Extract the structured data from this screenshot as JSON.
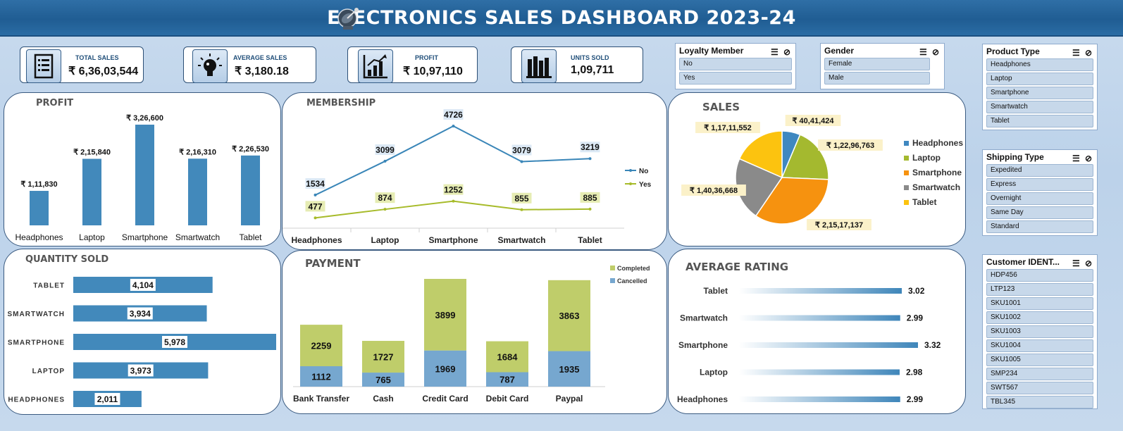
{
  "title": "ELECTRONICS SALES DASHBOARD  2023-24",
  "kpis": [
    {
      "label": "TOTAL SALES",
      "value": "₹ 6,36,03,544",
      "icon": "document-list-icon"
    },
    {
      "label": "AVERAGE SALES",
      "value": "₹ 3,180.18",
      "icon": "lightbulb-icon"
    },
    {
      "label": "PROFIT",
      "value": "₹ 10,97,110",
      "icon": "bar-growth-icon"
    },
    {
      "label": "UNITS SOLD",
      "value": "1,09,711",
      "icon": "books-icon"
    }
  ],
  "slicers": {
    "loyalty": {
      "title": "Loyalty Member",
      "items": [
        "No",
        "Yes"
      ]
    },
    "gender": {
      "title": "Gender",
      "items": [
        "Female",
        "Male"
      ]
    },
    "product_type": {
      "title": "Product Type",
      "items": [
        "Headphones",
        "Laptop",
        "Smartphone",
        "Smartwatch",
        "Tablet"
      ]
    },
    "shipping_type": {
      "title": "Shipping Type",
      "items": [
        "Expedited",
        "Express",
        "Overnight",
        "Same Day",
        "Standard"
      ]
    },
    "customer": {
      "title": "Customer IDENT...",
      "items": [
        "HDP456",
        "LTP123",
        "SKU1001",
        "SKU1002",
        "SKU1003",
        "SKU1004",
        "SKU1005",
        "SMP234",
        "SWT567",
        "TBL345"
      ]
    }
  },
  "panels": {
    "profit": "PROFIT",
    "membership": "MEMBERSHIP",
    "sales": "SALES",
    "quantity": "QUANTITY SOLD",
    "payment": "PAYMENT",
    "rating": "AVERAGE RATING"
  },
  "colors": {
    "bar_blue": "#4289bb",
    "line_no": "#3a86b8",
    "line_yes": "#a7bb2a",
    "completed": "#bfcd6a",
    "cancelled": "#76a7cf",
    "pie_headphones": "#3f88c0",
    "pie_laptop": "#a4b92f",
    "pie_smartphone": "#f6920f",
    "pie_smartwatch": "#8a8a8a",
    "pie_tablet": "#fcc30f",
    "label_bg_yellow": "#fbf1c9",
    "label_bg_blue": "#dce9f5",
    "label_bg_green": "#e6ecb3"
  },
  "chart_data": [
    {
      "id": "profit",
      "type": "bar",
      "categories": [
        "Headphones",
        "Laptop",
        "Smartphone",
        "Smartwatch",
        "Tablet"
      ],
      "values": [
        111830,
        215840,
        326600,
        216310,
        226530
      ],
      "labels": [
        "₹ 1,11,830",
        "₹ 2,15,840",
        "₹ 3,26,600",
        "₹ 2,16,310",
        "₹ 2,26,530"
      ],
      "ylim": [
        0,
        326600
      ]
    },
    {
      "id": "membership",
      "type": "line",
      "categories": [
        "Headphones",
        "Laptop",
        "Smartphone",
        "Smartwatch",
        "Tablet"
      ],
      "series": [
        {
          "name": "No",
          "values": [
            1534,
            3099,
            4726,
            3079,
            3219
          ]
        },
        {
          "name": "Yes",
          "values": [
            477,
            874,
            1252,
            855,
            885
          ]
        }
      ],
      "ylim": [
        0,
        4726
      ],
      "legend": "right"
    },
    {
      "id": "sales",
      "type": "pie",
      "categories": [
        "Headphones",
        "Laptop",
        "Smartphone",
        "Smartwatch",
        "Tablet"
      ],
      "values": [
        4041424,
        12296763,
        21517137,
        14036668,
        11711552
      ],
      "labels": [
        "₹ 40,41,424",
        "₹ 1,22,96,763",
        "₹ 2,15,17,137",
        "₹ 1,40,36,668",
        "₹ 1,17,11,552"
      ],
      "legend": "right"
    },
    {
      "id": "quantity",
      "type": "bar",
      "orientation": "horizontal",
      "categories": [
        "TABLET",
        "SMARTWATCH",
        "SMARTPHONE",
        "LAPTOP",
        "HEADPHONES"
      ],
      "values": [
        4104,
        3934,
        5978,
        3973,
        2011
      ],
      "labels": [
        "4,104",
        "3,934",
        "5,978",
        "3,973",
        "2,011"
      ],
      "xlim": [
        0,
        5978
      ]
    },
    {
      "id": "payment",
      "type": "bar",
      "stacked": true,
      "categories": [
        "Bank Transfer",
        "Cash",
        "Credit Card",
        "Debit Card",
        "Paypal"
      ],
      "series": [
        {
          "name": "Cancelled",
          "values": [
            1112,
            765,
            1969,
            787,
            1935
          ]
        },
        {
          "name": "Completed",
          "values": [
            2259,
            1727,
            3899,
            1684,
            3863
          ]
        }
      ],
      "ylim": [
        0,
        5868
      ],
      "legend": "top-right"
    },
    {
      "id": "rating",
      "type": "bar",
      "orientation": "horizontal",
      "categories": [
        "Tablet",
        "Smartwatch",
        "Smartphone",
        "Laptop",
        "Headphones"
      ],
      "values": [
        3.02,
        2.99,
        3.32,
        2.98,
        2.99
      ],
      "labels": [
        "3.02",
        "2.99",
        "3.32",
        "2.98",
        "2.99"
      ]
    }
  ]
}
